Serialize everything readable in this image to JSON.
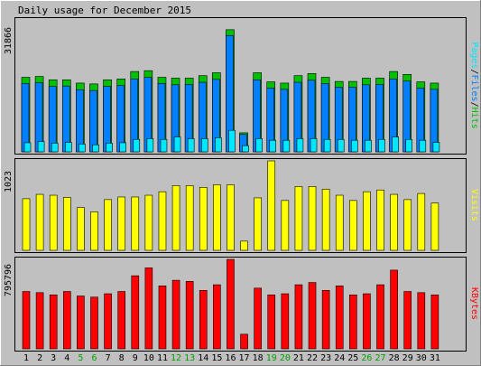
{
  "chart_data": {
    "type": "bar",
    "title": "Daily usage for December 2015",
    "categories": [
      "1",
      "2",
      "3",
      "4",
      "5",
      "6",
      "7",
      "8",
      "9",
      "10",
      "11",
      "12",
      "13",
      "14",
      "15",
      "16",
      "17",
      "18",
      "19",
      "20",
      "21",
      "22",
      "23",
      "24",
      "25",
      "26",
      "27",
      "28",
      "29",
      "30",
      "31"
    ],
    "weekend_days": [
      "5",
      "6",
      "12",
      "13",
      "19",
      "20",
      "26",
      "27"
    ],
    "panels": [
      {
        "name": "hits_files_pages",
        "ymax": 31866,
        "ymax_label": "31866",
        "side_label": [
          "Pages",
          "/",
          "Files",
          "/",
          "Hits"
        ],
        "series": [
          {
            "name": "Hits",
            "color": "#00c000",
            "values": [
              18000,
              18200,
              17400,
              17400,
              16600,
              16400,
              17400,
              17600,
              19400,
              19600,
              18000,
              17800,
              17800,
              18400,
              19100,
              29500,
              4600,
              19100,
              16900,
              16600,
              18400,
              18900,
              18000,
              17000,
              17000,
              17800,
              17800,
              19400,
              18700,
              16900,
              16600
            ]
          },
          {
            "name": "Files",
            "color": "#0080ff",
            "values": [
              16500,
              16700,
              15800,
              15900,
              15000,
              14800,
              15800,
              16000,
              17600,
              18000,
              16500,
              16200,
              16300,
              16800,
              17500,
              28100,
              4200,
              17400,
              15400,
              15100,
              16800,
              17300,
              16500,
              15600,
              15600,
              16200,
              16300,
              17600,
              17100,
              15400,
              15100
            ]
          },
          {
            "name": "Pages",
            "color": "#00e8ff",
            "values": [
              2200,
              2500,
              2100,
              2300,
              1900,
              1700,
              2100,
              2200,
              3000,
              3200,
              3000,
              3600,
              3200,
              3200,
              3400,
              5200,
              1500,
              3200,
              2800,
              2800,
              3200,
              3200,
              3000,
              3000,
              2800,
              2800,
              3000,
              3600,
              3000,
              2800,
              2300
            ]
          }
        ]
      },
      {
        "name": "visits",
        "ymax": 1023,
        "ymax_label": "1023",
        "side_label": [
          "Visits"
        ],
        "series": [
          {
            "name": "Visits",
            "color": "#ffff00",
            "values": [
              590,
              640,
              630,
              605,
              490,
              440,
              580,
              610,
              610,
              630,
              670,
              740,
              740,
              720,
              750,
              750,
              105,
              600,
              1023,
              570,
              730,
              730,
              700,
              630,
              570,
              670,
              690,
              640,
              580,
              650,
              540
            ]
          }
        ]
      },
      {
        "name": "kbytes",
        "ymax": 795796,
        "ymax_label": "795796",
        "side_label": [
          "KBytes"
        ],
        "series": [
          {
            "name": "KBytes",
            "color": "#ff0000",
            "values": [
              510000,
              500000,
              480000,
              510000,
              470000,
              460000,
              490000,
              510000,
              650000,
              720000,
              560000,
              610000,
              600000,
              520000,
              570000,
              795796,
              130000,
              540000,
              480000,
              490000,
              570000,
              590000,
              520000,
              560000,
              480000,
              490000,
              570000,
              700000,
              510000,
              500000,
              480000
            ]
          }
        ]
      }
    ]
  }
}
